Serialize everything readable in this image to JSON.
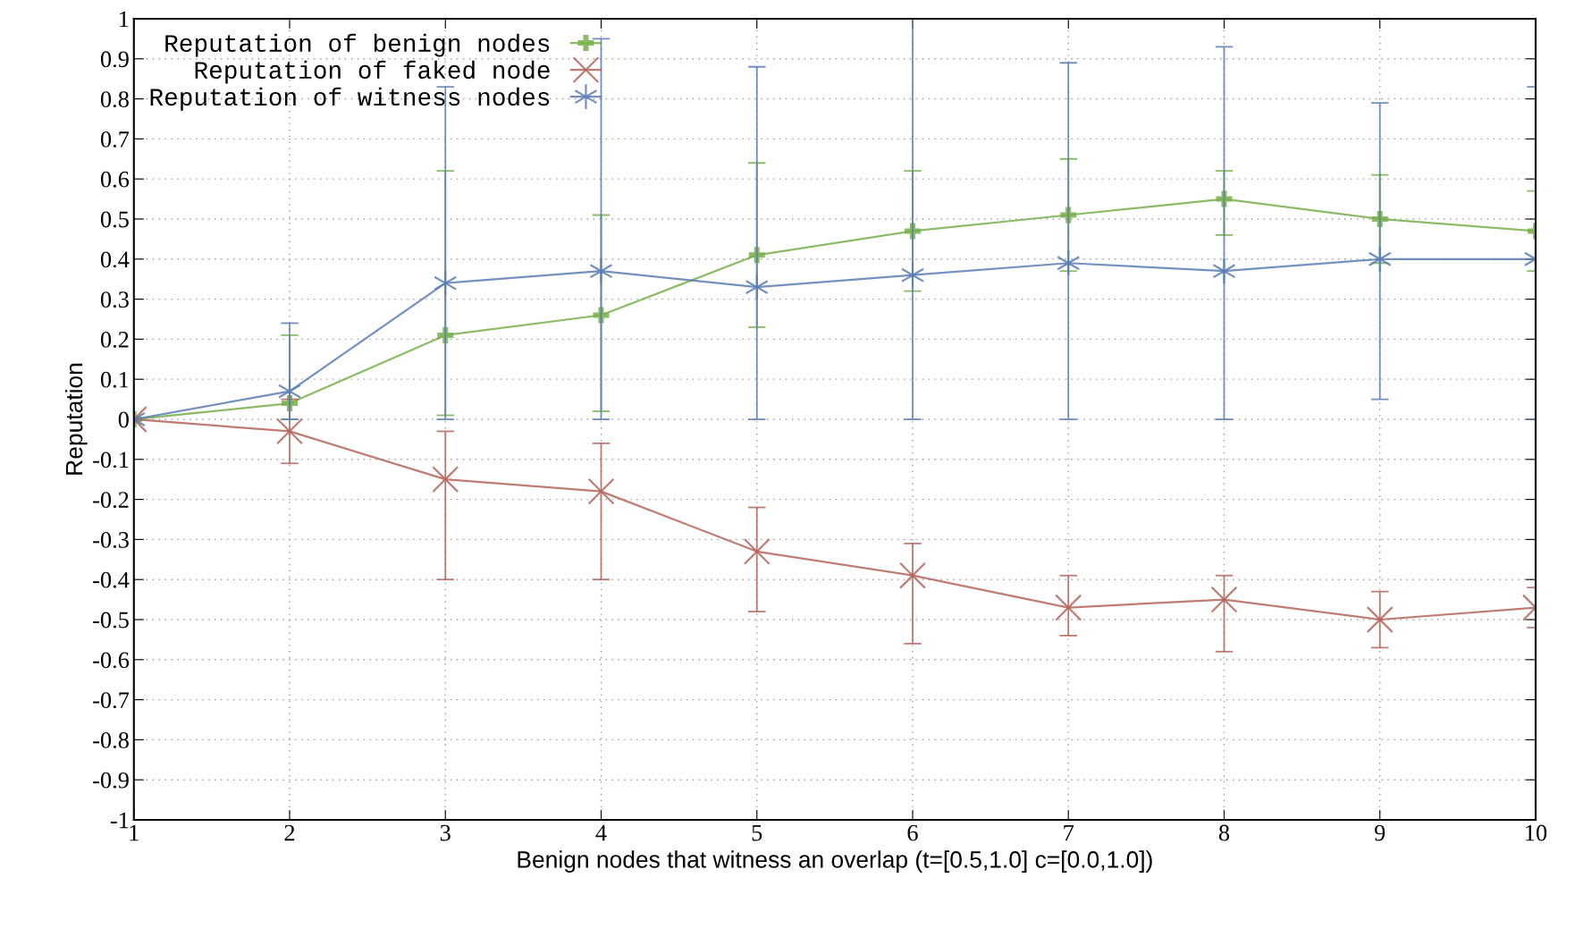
{
  "chart_data": {
    "type": "line",
    "xlabel": "Benign nodes that witness an overlap (t=[0.5,1.0] c=[0.0,1.0])",
    "ylabel": "Reputation",
    "x": [
      1,
      2,
      3,
      4,
      5,
      6,
      7,
      8,
      9,
      10
    ],
    "series": [
      {
        "name": "Reputation of benign nodes",
        "color": "#77b04a",
        "marker": "cross",
        "values": [
          0,
          0.04,
          0.21,
          0.26,
          0.41,
          0.47,
          0.51,
          0.55,
          0.5,
          0.47
        ],
        "errors": [
          null,
          [
            0.0,
            0.21
          ],
          [
            0.01,
            0.62
          ],
          [
            0.02,
            0.51
          ],
          [
            0.23,
            0.64
          ],
          [
            0.32,
            0.62
          ],
          [
            0.37,
            0.65
          ],
          [
            0.46,
            0.62
          ],
          [
            0.39,
            0.61
          ],
          [
            0.37,
            0.57
          ]
        ]
      },
      {
        "name": "Reputation of faked node",
        "color": "#b5645a",
        "marker": "cross",
        "values": [
          0,
          -0.03,
          -0.15,
          -0.18,
          -0.33,
          -0.39,
          -0.47,
          -0.45,
          -0.5,
          -0.47
        ],
        "errors": [
          null,
          [
            -0.11,
            0.05
          ],
          [
            -0.4,
            -0.03
          ],
          [
            -0.4,
            -0.06
          ],
          [
            -0.48,
            -0.22
          ],
          [
            -0.56,
            -0.31
          ],
          [
            -0.54,
            -0.39
          ],
          [
            -0.58,
            -0.39
          ],
          [
            -0.57,
            -0.43
          ],
          [
            -0.52,
            -0.42
          ]
        ]
      },
      {
        "name": "Reputation of witness nodes",
        "color": "#5a7db5",
        "marker": "cross",
        "values": [
          0,
          0.07,
          0.34,
          0.37,
          0.33,
          0.36,
          0.39,
          0.37,
          0.4,
          0.4
        ],
        "errors": [
          null,
          [
            0.0,
            0.24
          ],
          [
            0.0,
            0.83
          ],
          [
            0.0,
            0.95
          ],
          [
            0.0,
            0.88
          ],
          [
            0.0,
            1.0
          ],
          [
            0.0,
            0.89
          ],
          [
            0.0,
            0.93
          ],
          [
            0.05,
            0.79
          ],
          [
            0.0,
            0.83
          ]
        ]
      }
    ],
    "xlim": [
      1,
      10
    ],
    "xticks": [
      1,
      2,
      3,
      4,
      5,
      6,
      7,
      8,
      9,
      10
    ],
    "ylim": [
      -1,
      1
    ],
    "yticks": [
      -1,
      -0.9,
      -0.8,
      -0.7,
      -0.6,
      -0.5,
      -0.4,
      -0.3,
      -0.2,
      -0.1,
      0,
      0.1,
      0.2,
      0.3,
      0.4,
      0.5,
      0.6,
      0.7,
      0.8,
      0.9,
      1
    ],
    "grid": true,
    "legend": "top left",
    "line_style": "solid"
  }
}
